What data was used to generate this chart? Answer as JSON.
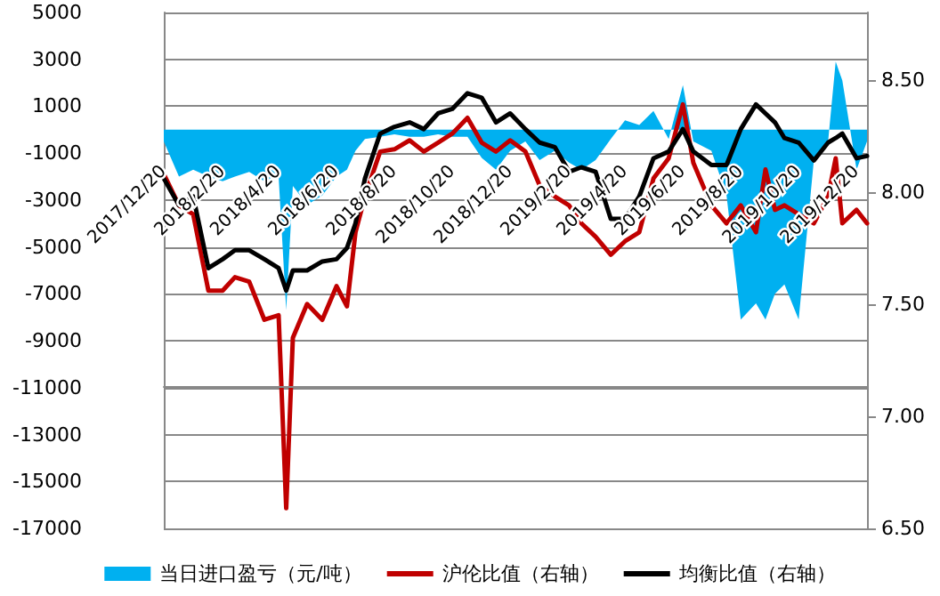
{
  "chart_data": {
    "type": "line",
    "x": [
      "2017-12-20",
      "2018-01-05",
      "2018-01-20",
      "2018-02-05",
      "2018-02-20",
      "2018-03-05",
      "2018-03-20",
      "2018-04-05",
      "2018-04-20",
      "2018-04-28",
      "2018-05-05",
      "2018-05-20",
      "2018-06-05",
      "2018-06-20",
      "2018-07-01",
      "2018-07-10",
      "2018-07-20",
      "2018-08-05",
      "2018-08-20",
      "2018-09-05",
      "2018-09-20",
      "2018-10-05",
      "2018-10-20",
      "2018-11-05",
      "2018-11-20",
      "2018-12-05",
      "2018-12-20",
      "2019-01-05",
      "2019-01-20",
      "2019-02-05",
      "2019-02-20",
      "2019-03-05",
      "2019-03-20",
      "2019-04-05",
      "2019-04-20",
      "2019-05-05",
      "2019-05-20",
      "2019-06-05",
      "2019-06-20",
      "2019-07-01",
      "2019-07-20",
      "2019-08-05",
      "2019-08-20",
      "2019-09-05",
      "2019-09-15",
      "2019-09-25",
      "2019-10-05",
      "2019-10-20",
      "2019-11-05",
      "2019-11-20",
      "2019-11-28",
      "2019-12-05",
      "2019-12-20",
      "2019-12-31"
    ],
    "series": [
      {
        "name": "当日进口盈亏（元/吨）",
        "type": "area",
        "axis": "y",
        "color": "#00b0f0",
        "values": [
          -500,
          -2000,
          -1700,
          -2000,
          -2200,
          -2000,
          -1800,
          -2200,
          -2000,
          -7700,
          -2400,
          -3200,
          -2800,
          -2000,
          -1700,
          -900,
          -400,
          -300,
          -200,
          -300,
          -300,
          -200,
          -300,
          -300,
          -1200,
          -1700,
          -900,
          -500,
          -1300,
          -900,
          -1400,
          -1700,
          -1300,
          -400,
          400,
          200,
          800,
          -400,
          1900,
          -500,
          -900,
          -2800,
          -8100,
          -7400,
          -8100,
          -7000,
          -6600,
          -8100,
          -1300,
          -500,
          2900,
          2100,
          -1700,
          -500
        ]
      },
      {
        "name": "沪伦比值（右轴）",
        "type": "line",
        "axis": "y2",
        "color": "#c00000",
        "values": [
          8.08,
          7.94,
          7.9,
          7.56,
          7.56,
          7.62,
          7.6,
          7.43,
          7.45,
          6.59,
          7.35,
          7.5,
          7.43,
          7.58,
          7.49,
          7.82,
          7.98,
          8.18,
          8.19,
          8.23,
          8.18,
          8.22,
          8.26,
          8.33,
          8.22,
          8.18,
          8.23,
          8.18,
          8.03,
          7.98,
          7.94,
          7.86,
          7.8,
          7.72,
          7.78,
          7.82,
          8.06,
          8.15,
          8.39,
          8.13,
          7.94,
          7.86,
          7.94,
          7.82,
          8.1,
          7.92,
          7.94,
          7.9,
          7.86,
          7.98,
          8.15,
          7.86,
          7.92,
          7.86
        ]
      },
      {
        "name": "均衡比值（右轴）",
        "type": "line",
        "axis": "y2",
        "color": "#000000",
        "values": [
          8.06,
          7.94,
          7.98,
          7.66,
          7.7,
          7.74,
          7.74,
          7.7,
          7.66,
          7.56,
          7.65,
          7.65,
          7.69,
          7.7,
          7.75,
          7.86,
          8.06,
          8.26,
          8.29,
          8.31,
          8.28,
          8.35,
          8.37,
          8.44,
          8.42,
          8.31,
          8.35,
          8.28,
          8.22,
          8.2,
          8.09,
          8.11,
          8.09,
          7.88,
          7.88,
          7.98,
          8.15,
          8.18,
          8.28,
          8.18,
          8.12,
          8.12,
          8.28,
          8.39,
          8.35,
          8.31,
          8.24,
          8.22,
          8.14,
          8.22,
          8.24,
          8.26,
          8.15,
          8.16
        ]
      }
    ],
    "xlim": [
      "2017-12-20",
      "2019-12-31"
    ],
    "xticks": [
      {
        "value": "2017-12-20",
        "label": "2017/12/20"
      },
      {
        "value": "2018-02-20",
        "label": "2018/2/20"
      },
      {
        "value": "2018-04-20",
        "label": "2018/4/20"
      },
      {
        "value": "2018-06-20",
        "label": "2018/6/20"
      },
      {
        "value": "2018-08-20",
        "label": "2018/8/20"
      },
      {
        "value": "2018-10-20",
        "label": "2018/10/20"
      },
      {
        "value": "2018-12-20",
        "label": "2018/12/20"
      },
      {
        "value": "2019-02-20",
        "label": "2019/2/20"
      },
      {
        "value": "2019-04-20",
        "label": "2019/4/20"
      },
      {
        "value": "2019-06-20",
        "label": "2019/6/20"
      },
      {
        "value": "2019-08-20",
        "label": "2019/8/20"
      },
      {
        "value": "2019-10-20",
        "label": "2019/10/20"
      },
      {
        "value": "2019-12-20",
        "label": "2019/12/20"
      }
    ],
    "ylim": [
      -17000,
      5000
    ],
    "yticks": [
      -17000,
      -15000,
      -13000,
      -11000,
      -9000,
      -7000,
      -5000,
      -3000,
      -1000,
      1000,
      3000,
      5000
    ],
    "y2lim": [
      6.5,
      8.8
    ],
    "y2ticks": [
      {
        "value": 6.5,
        "label": "6.50"
      },
      {
        "value": 7,
        "label": "7.00"
      },
      {
        "value": 7.5,
        "label": "7.50"
      },
      {
        "value": 8,
        "label": "8.00"
      },
      {
        "value": 8.5,
        "label": "8.50"
      }
    ],
    "grid": "y",
    "legend": "bottom",
    "marker": "none",
    "line_style": "solid"
  }
}
